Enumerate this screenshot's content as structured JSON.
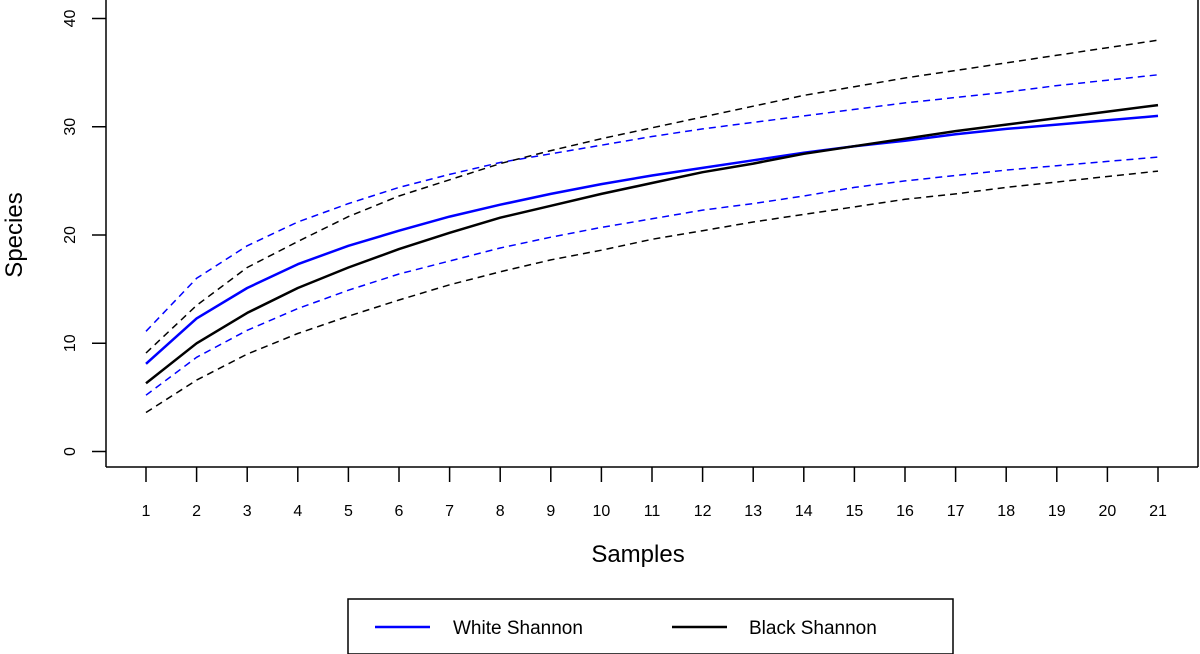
{
  "chart_data": {
    "type": "line",
    "xlabel": "Samples",
    "ylabel": "Species",
    "x": [
      1,
      2,
      3,
      4,
      5,
      6,
      7,
      8,
      9,
      10,
      11,
      12,
      13,
      14,
      15,
      16,
      17,
      18,
      19,
      20,
      21
    ],
    "xlim": [
      1,
      21
    ],
    "ylim": [
      0,
      40
    ],
    "yticks": [
      0,
      10,
      20,
      30,
      40
    ],
    "grid": false,
    "legend_position": "bottom",
    "series": [
      {
        "name": "White Shannon",
        "color": "#0000ff",
        "style": "solid",
        "values": [
          8.1,
          12.3,
          15.1,
          17.3,
          19.0,
          20.4,
          21.7,
          22.8,
          23.8,
          24.7,
          25.5,
          26.2,
          26.9,
          27.6,
          28.2,
          28.7,
          29.3,
          29.8,
          30.2,
          30.6,
          31.0
        ]
      },
      {
        "name": "",
        "color": "#0000ff",
        "style": "dashed",
        "values": [
          11.1,
          16.0,
          19.0,
          21.2,
          22.9,
          24.4,
          25.6,
          26.7,
          27.5,
          28.3,
          29.1,
          29.8,
          30.4,
          31.0,
          31.6,
          32.2,
          32.7,
          33.2,
          33.8,
          34.3,
          34.8
        ]
      },
      {
        "name": "",
        "color": "#0000ff",
        "style": "dashed",
        "values": [
          5.2,
          8.7,
          11.2,
          13.2,
          14.9,
          16.4,
          17.6,
          18.8,
          19.8,
          20.7,
          21.5,
          22.3,
          22.9,
          23.6,
          24.4,
          25.0,
          25.5,
          26.0,
          26.4,
          26.8,
          27.2
        ]
      },
      {
        "name": "Black Shannon",
        "color": "#000000",
        "style": "solid",
        "values": [
          6.3,
          10.0,
          12.8,
          15.1,
          17.0,
          18.7,
          20.2,
          21.6,
          22.7,
          23.8,
          24.8,
          25.8,
          26.6,
          27.5,
          28.2,
          28.9,
          29.6,
          30.2,
          30.8,
          31.4,
          32.0
        ]
      },
      {
        "name": "",
        "color": "#000000",
        "style": "dashed",
        "values": [
          9.1,
          13.5,
          17.0,
          19.4,
          21.7,
          23.6,
          25.1,
          26.6,
          27.8,
          28.9,
          29.9,
          30.9,
          31.9,
          32.9,
          33.7,
          34.5,
          35.2,
          35.9,
          36.6,
          37.3,
          38.0
        ]
      },
      {
        "name": "",
        "color": "#000000",
        "style": "dashed",
        "values": [
          3.6,
          6.6,
          9.0,
          10.9,
          12.5,
          14.0,
          15.4,
          16.6,
          17.7,
          18.6,
          19.6,
          20.4,
          21.2,
          21.9,
          22.6,
          23.3,
          23.8,
          24.4,
          24.9,
          25.4,
          25.9
        ]
      }
    ],
    "legend": [
      {
        "label": "White Shannon",
        "color": "#0000ff"
      },
      {
        "label": "Black Shannon",
        "color": "#000000"
      }
    ]
  }
}
